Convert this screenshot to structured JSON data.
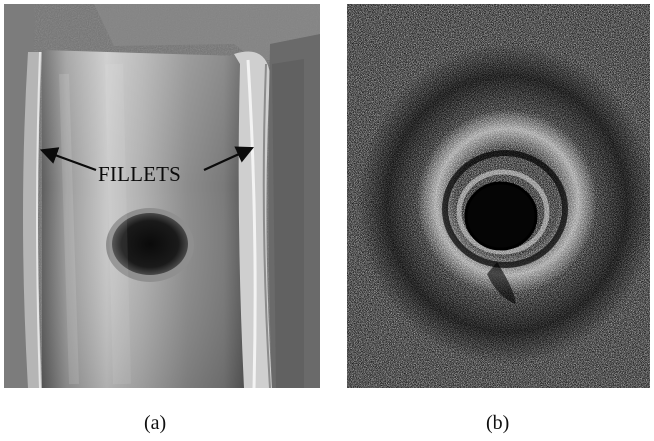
{
  "figure": {
    "panel_a": {
      "caption": "(a)",
      "annotation": "FILLETS",
      "icon": "crankshaft-journal-photo"
    },
    "panel_b": {
      "caption": "(b)",
      "icon": "magnetic-particle-indication-image"
    }
  }
}
